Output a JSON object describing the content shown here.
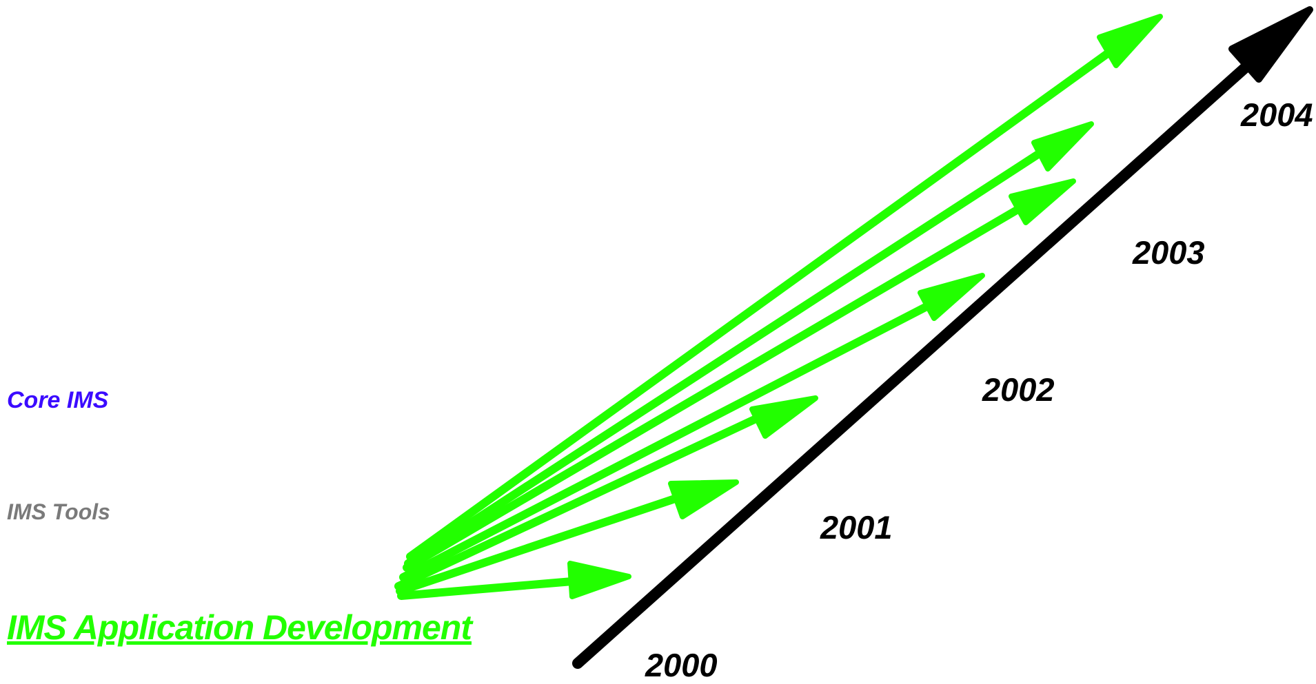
{
  "labels": {
    "core_ims": "Core IMS",
    "ims_tools": "IMS Tools",
    "ims_app_dev": "IMS Application Development"
  },
  "years": [
    "2000",
    "2001",
    "2002",
    "2003",
    "2004"
  ],
  "colors": {
    "core_ims": "#3b0bff",
    "ims_tools": "#7a7a7a",
    "ims_app_dev": "#22ff00",
    "timeline": "#000000"
  },
  "arrows": {
    "count": 7,
    "color_name": "green"
  }
}
